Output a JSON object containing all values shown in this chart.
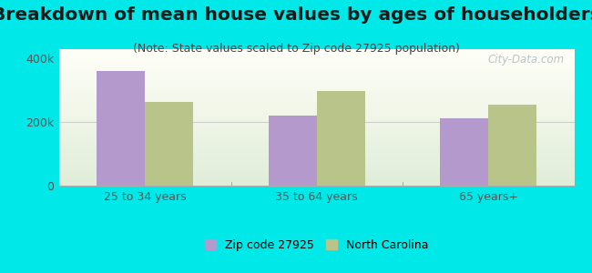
{
  "title": "Breakdown of mean house values by ages of householders",
  "subtitle": "(Note: State values scaled to Zip code 27925 population)",
  "categories": [
    "25 to 34 years",
    "35 to 64 years",
    "65 years+"
  ],
  "zip_values": [
    362000,
    222000,
    212000
  ],
  "nc_values": [
    265000,
    298000,
    255000
  ],
  "zip_color": "#b399cc",
  "nc_color": "#b8c48a",
  "background_outer": "#00e8e8",
  "ylim": [
    0,
    430000
  ],
  "yticks": [
    0,
    200000,
    400000
  ],
  "ytick_labels": [
    "0",
    "200k",
    "400k"
  ],
  "legend_zip_label": "Zip code 27925",
  "legend_nc_label": "North Carolina",
  "title_fontsize": 14.5,
  "subtitle_fontsize": 9,
  "tick_fontsize": 9,
  "legend_fontsize": 9,
  "bar_width": 0.28,
  "watermark": "City-Data.com"
}
